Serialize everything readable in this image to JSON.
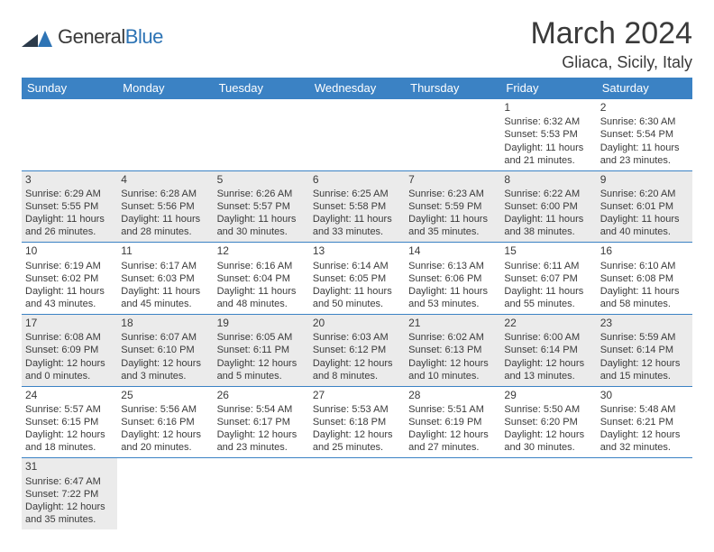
{
  "logo": {
    "text_a": "General",
    "text_b": "Blue",
    "accent": "#2e74b5"
  },
  "title": "March 2024",
  "location": "Gliaca, Sicily, Italy",
  "colors": {
    "header_bg": "#3b82c4",
    "header_fg": "#ffffff",
    "row_shade": "#ebebeb",
    "rule": "#3b82c4",
    "text": "#3a3a3a"
  },
  "weekdays": [
    "Sunday",
    "Monday",
    "Tuesday",
    "Wednesday",
    "Thursday",
    "Friday",
    "Saturday"
  ],
  "weeks": [
    [
      null,
      null,
      null,
      null,
      null,
      {
        "n": "1",
        "sr": "Sunrise: 6:32 AM",
        "ss": "Sunset: 5:53 PM",
        "dl": "Daylight: 11 hours and 21 minutes."
      },
      {
        "n": "2",
        "sr": "Sunrise: 6:30 AM",
        "ss": "Sunset: 5:54 PM",
        "dl": "Daylight: 11 hours and 23 minutes."
      }
    ],
    [
      {
        "n": "3",
        "sr": "Sunrise: 6:29 AM",
        "ss": "Sunset: 5:55 PM",
        "dl": "Daylight: 11 hours and 26 minutes."
      },
      {
        "n": "4",
        "sr": "Sunrise: 6:28 AM",
        "ss": "Sunset: 5:56 PM",
        "dl": "Daylight: 11 hours and 28 minutes."
      },
      {
        "n": "5",
        "sr": "Sunrise: 6:26 AM",
        "ss": "Sunset: 5:57 PM",
        "dl": "Daylight: 11 hours and 30 minutes."
      },
      {
        "n": "6",
        "sr": "Sunrise: 6:25 AM",
        "ss": "Sunset: 5:58 PM",
        "dl": "Daylight: 11 hours and 33 minutes."
      },
      {
        "n": "7",
        "sr": "Sunrise: 6:23 AM",
        "ss": "Sunset: 5:59 PM",
        "dl": "Daylight: 11 hours and 35 minutes."
      },
      {
        "n": "8",
        "sr": "Sunrise: 6:22 AM",
        "ss": "Sunset: 6:00 PM",
        "dl": "Daylight: 11 hours and 38 minutes."
      },
      {
        "n": "9",
        "sr": "Sunrise: 6:20 AM",
        "ss": "Sunset: 6:01 PM",
        "dl": "Daylight: 11 hours and 40 minutes."
      }
    ],
    [
      {
        "n": "10",
        "sr": "Sunrise: 6:19 AM",
        "ss": "Sunset: 6:02 PM",
        "dl": "Daylight: 11 hours and 43 minutes."
      },
      {
        "n": "11",
        "sr": "Sunrise: 6:17 AM",
        "ss": "Sunset: 6:03 PM",
        "dl": "Daylight: 11 hours and 45 minutes."
      },
      {
        "n": "12",
        "sr": "Sunrise: 6:16 AM",
        "ss": "Sunset: 6:04 PM",
        "dl": "Daylight: 11 hours and 48 minutes."
      },
      {
        "n": "13",
        "sr": "Sunrise: 6:14 AM",
        "ss": "Sunset: 6:05 PM",
        "dl": "Daylight: 11 hours and 50 minutes."
      },
      {
        "n": "14",
        "sr": "Sunrise: 6:13 AM",
        "ss": "Sunset: 6:06 PM",
        "dl": "Daylight: 11 hours and 53 minutes."
      },
      {
        "n": "15",
        "sr": "Sunrise: 6:11 AM",
        "ss": "Sunset: 6:07 PM",
        "dl": "Daylight: 11 hours and 55 minutes."
      },
      {
        "n": "16",
        "sr": "Sunrise: 6:10 AM",
        "ss": "Sunset: 6:08 PM",
        "dl": "Daylight: 11 hours and 58 minutes."
      }
    ],
    [
      {
        "n": "17",
        "sr": "Sunrise: 6:08 AM",
        "ss": "Sunset: 6:09 PM",
        "dl": "Daylight: 12 hours and 0 minutes."
      },
      {
        "n": "18",
        "sr": "Sunrise: 6:07 AM",
        "ss": "Sunset: 6:10 PM",
        "dl": "Daylight: 12 hours and 3 minutes."
      },
      {
        "n": "19",
        "sr": "Sunrise: 6:05 AM",
        "ss": "Sunset: 6:11 PM",
        "dl": "Daylight: 12 hours and 5 minutes."
      },
      {
        "n": "20",
        "sr": "Sunrise: 6:03 AM",
        "ss": "Sunset: 6:12 PM",
        "dl": "Daylight: 12 hours and 8 minutes."
      },
      {
        "n": "21",
        "sr": "Sunrise: 6:02 AM",
        "ss": "Sunset: 6:13 PM",
        "dl": "Daylight: 12 hours and 10 minutes."
      },
      {
        "n": "22",
        "sr": "Sunrise: 6:00 AM",
        "ss": "Sunset: 6:14 PM",
        "dl": "Daylight: 12 hours and 13 minutes."
      },
      {
        "n": "23",
        "sr": "Sunrise: 5:59 AM",
        "ss": "Sunset: 6:14 PM",
        "dl": "Daylight: 12 hours and 15 minutes."
      }
    ],
    [
      {
        "n": "24",
        "sr": "Sunrise: 5:57 AM",
        "ss": "Sunset: 6:15 PM",
        "dl": "Daylight: 12 hours and 18 minutes."
      },
      {
        "n": "25",
        "sr": "Sunrise: 5:56 AM",
        "ss": "Sunset: 6:16 PM",
        "dl": "Daylight: 12 hours and 20 minutes."
      },
      {
        "n": "26",
        "sr": "Sunrise: 5:54 AM",
        "ss": "Sunset: 6:17 PM",
        "dl": "Daylight: 12 hours and 23 minutes."
      },
      {
        "n": "27",
        "sr": "Sunrise: 5:53 AM",
        "ss": "Sunset: 6:18 PM",
        "dl": "Daylight: 12 hours and 25 minutes."
      },
      {
        "n": "28",
        "sr": "Sunrise: 5:51 AM",
        "ss": "Sunset: 6:19 PM",
        "dl": "Daylight: 12 hours and 27 minutes."
      },
      {
        "n": "29",
        "sr": "Sunrise: 5:50 AM",
        "ss": "Sunset: 6:20 PM",
        "dl": "Daylight: 12 hours and 30 minutes."
      },
      {
        "n": "30",
        "sr": "Sunrise: 5:48 AM",
        "ss": "Sunset: 6:21 PM",
        "dl": "Daylight: 12 hours and 32 minutes."
      }
    ],
    [
      {
        "n": "31",
        "sr": "Sunrise: 6:47 AM",
        "ss": "Sunset: 7:22 PM",
        "dl": "Daylight: 12 hours and 35 minutes."
      },
      null,
      null,
      null,
      null,
      null,
      null
    ]
  ]
}
